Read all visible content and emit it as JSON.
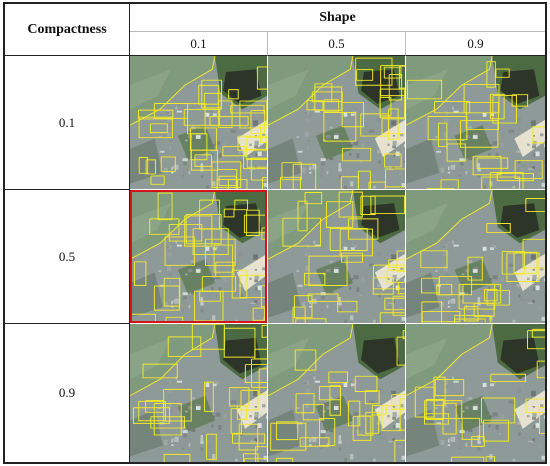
{
  "header": {
    "corner_label": "Compactness",
    "group_label": "Shape",
    "shape_values": [
      "0.1",
      "0.5",
      "0.9"
    ]
  },
  "rows": [
    {
      "label": "0.1"
    },
    {
      "label": "0.5"
    },
    {
      "label": "0.9"
    }
  ],
  "highlight": {
    "row": 1,
    "col": 0,
    "color": "#d4141b"
  },
  "colors": {
    "segment_line": "#f2ea2a",
    "water": "#7f9a7d",
    "urban": "#8e9a97",
    "vegetation": "#4d6b43",
    "dark_area": "#2c3527"
  }
}
